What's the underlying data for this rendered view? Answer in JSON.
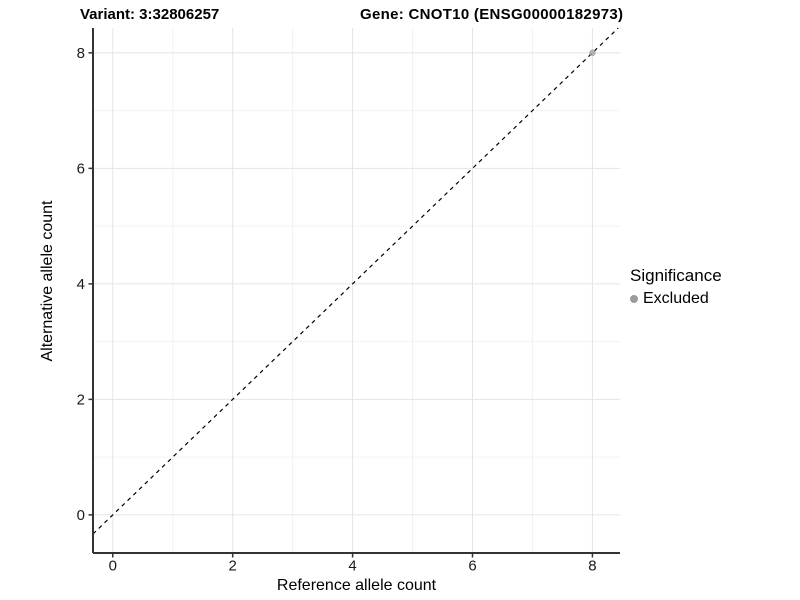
{
  "header": {
    "title_left": "Variant: 3:32806257",
    "title_right": "Gene: CNOT10 (ENSG00000182973)"
  },
  "chart_data": {
    "type": "scatter",
    "title_left": "Variant: 3:32806257",
    "title_right": "Gene: CNOT10 (ENSG00000182973)",
    "xlabel": "Reference allele count",
    "ylabel": "Alternative allele count",
    "xlim": [
      -0.33,
      8.46
    ],
    "ylim": [
      -0.66,
      8.43
    ],
    "xticks": [
      0,
      2,
      4,
      6,
      8
    ],
    "yticks": [
      0,
      2,
      4,
      6,
      8
    ],
    "minor_xticks": [
      1,
      3,
      5,
      7
    ],
    "minor_yticks": [
      1,
      3,
      5,
      7
    ],
    "grid": true,
    "identity_line": {
      "slope": 1,
      "intercept": 0,
      "style": "dashed",
      "color": "#000000"
    },
    "series": [
      {
        "name": "Excluded",
        "color": "#9b9b9b",
        "opacity": 0.75,
        "points": [
          [
            8,
            8
          ]
        ]
      }
    ],
    "legend": {
      "position": "right",
      "title": "Significance",
      "items": [
        {
          "label": "Excluded",
          "color": "#9b9b9b"
        }
      ]
    },
    "colors": {
      "grid_major": "#e4e4e4",
      "grid_minor": "#f2f2f2",
      "axis_line": "#333333",
      "tick_mark": "#333333",
      "text": "#000000"
    }
  }
}
